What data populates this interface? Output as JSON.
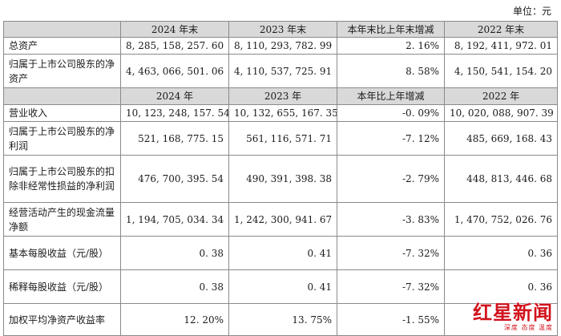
{
  "unit_label": "单位：元",
  "header1": [
    "",
    "2024 年末",
    "2023 年末",
    "本年末比上年末增减",
    "2022 年末"
  ],
  "rows1": [
    [
      "总资产",
      "8, 285, 158, 257. 60",
      "8, 110, 293, 782. 99",
      "2. 16%",
      "8, 192, 411, 972. 01"
    ],
    [
      "归属于上市公司股东的净资产",
      "4, 463, 066, 501. 06",
      "4, 110, 537, 725. 91",
      "8. 58%",
      "4, 150, 541, 154. 20"
    ]
  ],
  "header2": [
    "",
    "2024 年",
    "2023 年",
    "本年比上年增减",
    "2022 年"
  ],
  "rows2": [
    [
      "营业收入",
      "10, 123, 248, 157. 54",
      "10, 132, 655, 167. 35",
      "-0. 09%",
      "10, 020, 088, 907. 39"
    ],
    [
      "归属于上市公司股东的净利润",
      "521, 168, 775. 15",
      "561, 116, 571. 71",
      "-7. 12%",
      "485, 669, 168. 43"
    ],
    [
      "归属于上市公司股东的扣除非经常性损益的净利润",
      "476, 700, 395. 54",
      "490, 391, 398. 38",
      "-2. 79%",
      "448, 813, 446. 68"
    ],
    [
      "经营活动产生的现金流量净额",
      "1, 194, 705, 034. 34",
      "1, 242, 300, 941. 67",
      "-3. 83%",
      "1, 470, 752, 026. 76"
    ],
    [
      "基本每股收益（元/股）",
      "0. 38",
      "0. 41",
      "-7. 32%",
      "0. 36"
    ],
    [
      "稀释每股收益（元/股）",
      "0. 38",
      "0. 41",
      "-7. 32%",
      "0. 36"
    ],
    [
      "加权平均净资产收益率",
      "12. 20%",
      "13. 75%",
      "-1. 55%",
      ""
    ]
  ],
  "watermark": {
    "logo_text": "红星新闻",
    "slogan": "深度 态度 温度",
    "color": "#d1121b"
  }
}
